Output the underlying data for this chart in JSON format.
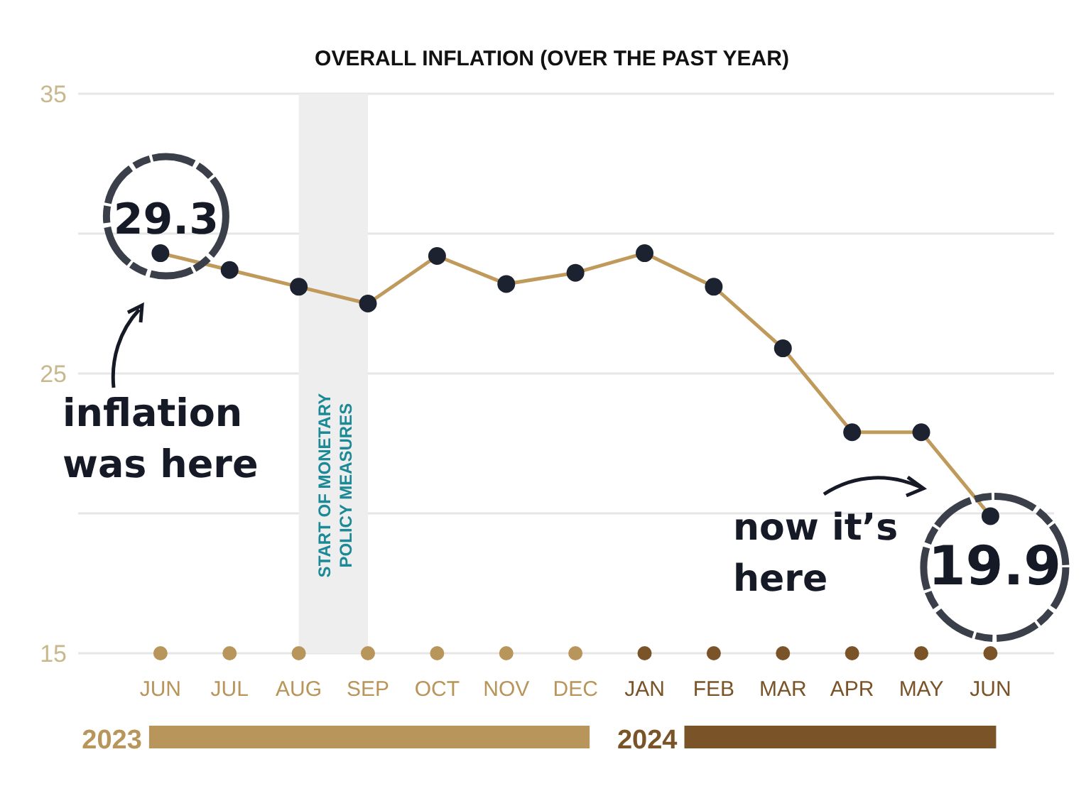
{
  "chart_data": {
    "type": "line",
    "title": "OVERALL INFLATION (OVER THE PAST YEAR)",
    "categories": [
      "JUN",
      "JUL",
      "AUG",
      "SEP",
      "OCT",
      "NOV",
      "DEC",
      "JAN",
      "FEB",
      "MAR",
      "APR",
      "MAY",
      "JUN"
    ],
    "series": [
      {
        "color": "#c09a5b",
        "values": [
          29.3,
          28.7,
          28.1,
          27.5,
          29.2,
          28.2,
          28.6,
          29.3,
          28.1,
          25.9,
          22.9,
          22.9,
          19.9
        ]
      }
    ],
    "value_labels": [
      "29.3",
      null,
      null,
      null,
      null,
      null,
      null,
      null,
      null,
      null,
      null,
      null,
      "19.9"
    ],
    "ylim": [
      15,
      35
    ],
    "yticks": [
      15,
      {
        "value": 20,
        "label": null
      },
      25,
      {
        "value": 30,
        "label": null
      },
      35
    ],
    "grid": "y",
    "marker": "circle",
    "line_style": "solid",
    "bands": [
      {
        "axis": "x",
        "from": "AUG",
        "to": "SEP",
        "label": "START OF MONETARY POLICY MEASURES",
        "color": "#eeeeee"
      }
    ],
    "annotations": [
      "inflation was here",
      "now it’s here",
      "2023",
      "2024"
    ]
  }
}
